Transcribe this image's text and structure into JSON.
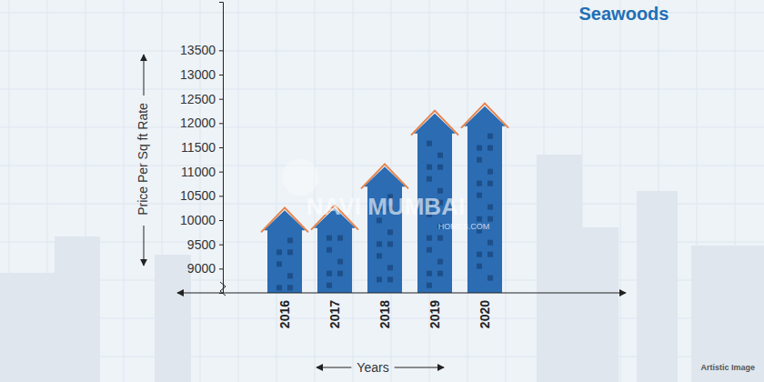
{
  "chart_data": {
    "type": "bar",
    "title": "Seawoods",
    "y_label": "Price Per Sq ft Rate",
    "x_label": "Years",
    "categories": [
      "2016",
      "2017",
      "2018",
      "2019",
      "2020"
    ],
    "values": [
      10200,
      10250,
      11100,
      12200,
      12350
    ],
    "color": "#2b6cb3",
    "ylim": [
      8500,
      14500
    ],
    "yticks": [
      9000,
      9500,
      10000,
      10500,
      11000,
      11500,
      12000,
      12500,
      13000,
      13500
    ],
    "grid": false,
    "annotations": [
      "NAVI MUMBAI",
      "HOMES.COM",
      "Artistic Image"
    ]
  }
}
